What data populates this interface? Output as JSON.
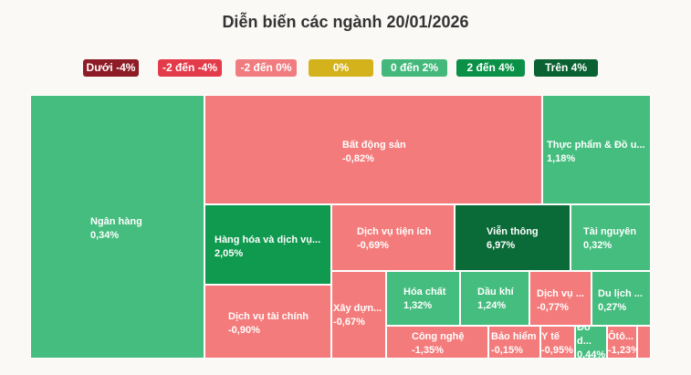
{
  "chart_data": {
    "type": "treemap",
    "title": "Diễn biến các ngành 20/01/2026",
    "legend": [
      {
        "label": "Dưới -4%",
        "color": "#8e1c26"
      },
      {
        "label": "-2 đến -4%",
        "color": "#e43b4a"
      },
      {
        "label": "-2 đến 0%",
        "color": "#f07c80"
      },
      {
        "label": "0%",
        "color": "#d4b21c"
      },
      {
        "label": "0 đến 2%",
        "color": "#44b87b"
      },
      {
        "label": "2 đến 4%",
        "color": "#0a9147"
      },
      {
        "label": "Trên 4%",
        "color": "#0a6232"
      }
    ],
    "tiles": [
      {
        "name": "Ngân hàng",
        "value": "0,34%"
      },
      {
        "name": "Bất động sản",
        "value": "-0,82%"
      },
      {
        "name": "Thực phẩm & Đồ u...",
        "value": "1,18%"
      },
      {
        "name": "Hàng hóa và dịch vụ...",
        "value": "2,05%"
      },
      {
        "name": "Dịch vụ tài chính",
        "value": "-0,90%"
      },
      {
        "name": "Dịch vụ tiện ích",
        "value": "-0,69%"
      },
      {
        "name": "Viễn thông",
        "value": "6,97%"
      },
      {
        "name": "Tài nguyên",
        "value": "0,32%"
      },
      {
        "name": "Xây dựn...",
        "value": "-0,67%"
      },
      {
        "name": "Hóa chất",
        "value": "1,32%"
      },
      {
        "name": "Dầu khí",
        "value": "1,24%"
      },
      {
        "name": "Dịch vụ ...",
        "value": "-0,77%"
      },
      {
        "name": "Du lịch ...",
        "value": "0,27%"
      },
      {
        "name": "Công nghệ",
        "value": "-1,35%"
      },
      {
        "name": "Bảo hiểm",
        "value": "-0,15%"
      },
      {
        "name": "Y tế",
        "value": "-0,95%"
      },
      {
        "name": "Đồ d...",
        "value": "0,44%"
      },
      {
        "name": "Ôtô...",
        "value": "-1,23%"
      },
      {
        "name": "",
        "value": ""
      }
    ]
  }
}
